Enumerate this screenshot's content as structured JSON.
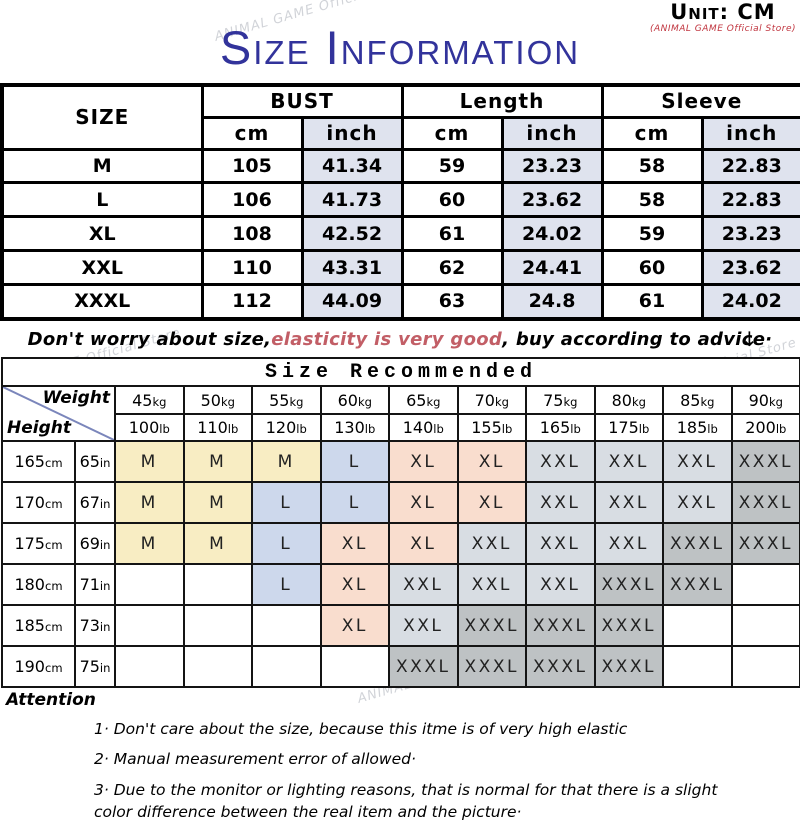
{
  "meta": {
    "unit_label": "Unit: CM",
    "store_label": "(ANIMAL GAME Official Store)",
    "title": "Size Information",
    "watermark": "ANIMAL GAME Official Store"
  },
  "colors": {
    "title_blue": "#32339b",
    "store_red": "#c0353f",
    "highlight_rose": "#c25e66",
    "inch_bg": "#dfe3ee",
    "diagonal_line": "#7b86bb"
  },
  "size_table": {
    "size_header": "SIZE",
    "groups": [
      {
        "label": "BUST"
      },
      {
        "label": "Length"
      },
      {
        "label": "Sleeve"
      }
    ],
    "sub_cm": "cm",
    "sub_inch": "inch",
    "rows": [
      {
        "size": "M",
        "bust_cm": "105",
        "bust_in": "41.34",
        "len_cm": "59",
        "len_in": "23.23",
        "slv_cm": "58",
        "slv_in": "22.83"
      },
      {
        "size": "L",
        "bust_cm": "106",
        "bust_in": "41.73",
        "len_cm": "60",
        "len_in": "23.62",
        "slv_cm": "58",
        "slv_in": "22.83"
      },
      {
        "size": "XL",
        "bust_cm": "108",
        "bust_in": "42.52",
        "len_cm": "61",
        "len_in": "24.02",
        "slv_cm": "59",
        "slv_in": "23.23"
      },
      {
        "size": "XXL",
        "bust_cm": "110",
        "bust_in": "43.31",
        "len_cm": "62",
        "len_in": "24.41",
        "slv_cm": "60",
        "slv_in": "23.62"
      },
      {
        "size": "XXXL",
        "bust_cm": "112",
        "bust_in": "44.09",
        "len_cm": "63",
        "len_in": "24.8",
        "slv_cm": "61",
        "slv_in": "24.02"
      }
    ]
  },
  "advice": {
    "pre": "Don't worry about size, ",
    "highlight": "elasticity is very good",
    "post": ", buy according to advice·",
    "arrow": "↓"
  },
  "recommend_table": {
    "title": "Size Recommended",
    "weight_label": "Weight",
    "height_label": "Height",
    "weights_kg": [
      "45kg",
      "50kg",
      "55kg",
      "60kg",
      "65kg",
      "70kg",
      "75kg",
      "80kg",
      "85kg",
      "90kg"
    ],
    "weights_lb": [
      "100lb",
      "110lb",
      "120lb",
      "130lb",
      "140lb",
      "155lb",
      "165lb",
      "175lb",
      "185lb",
      "200lb"
    ],
    "rows": [
      {
        "cm": "165cm",
        "in": "65in",
        "cells": [
          "M",
          "M",
          "M",
          "L",
          "XL",
          "XL",
          "XXL",
          "XXL",
          "XXL",
          "XXXL"
        ]
      },
      {
        "cm": "170cm",
        "in": "67in",
        "cells": [
          "M",
          "M",
          "L",
          "L",
          "XL",
          "XL",
          "XXL",
          "XXL",
          "XXL",
          "XXXL"
        ]
      },
      {
        "cm": "175cm",
        "in": "69in",
        "cells": [
          "M",
          "M",
          "L",
          "XL",
          "XL",
          "XXL",
          "XXL",
          "XXL",
          "XXXL",
          "XXXL"
        ]
      },
      {
        "cm": "180cm",
        "in": "71in",
        "cells": [
          "",
          "",
          "L",
          "XL",
          "XXL",
          "XXL",
          "XXL",
          "XXXL",
          "XXXL",
          ""
        ]
      },
      {
        "cm": "185cm",
        "in": "73in",
        "cells": [
          "",
          "",
          "",
          "XL",
          "XXL",
          "XXXL",
          "XXXL",
          "XXXL",
          "",
          ""
        ]
      },
      {
        "cm": "190cm",
        "in": "75in",
        "cells": [
          "",
          "",
          "",
          "",
          "XXXL",
          "XXXL",
          "XXXL",
          "XXXL",
          "",
          ""
        ]
      }
    ],
    "size_colors": {
      "M": "#f8edc3",
      "L": "#cdd8ec",
      "XL": "#f9ddce",
      "XXL": "#d8dde3",
      "XXXL": "#bec2c4",
      "": "#ffffff"
    }
  },
  "attention": {
    "heading": "Attention",
    "items": [
      "1· Don't care about the size, because this itme is of very high elastic",
      "2· Manual measurement error of allowed·",
      "3·  Due to the monitor or lighting reasons, that is normal for that there is a slight color difference between the real item and the picture·"
    ]
  }
}
